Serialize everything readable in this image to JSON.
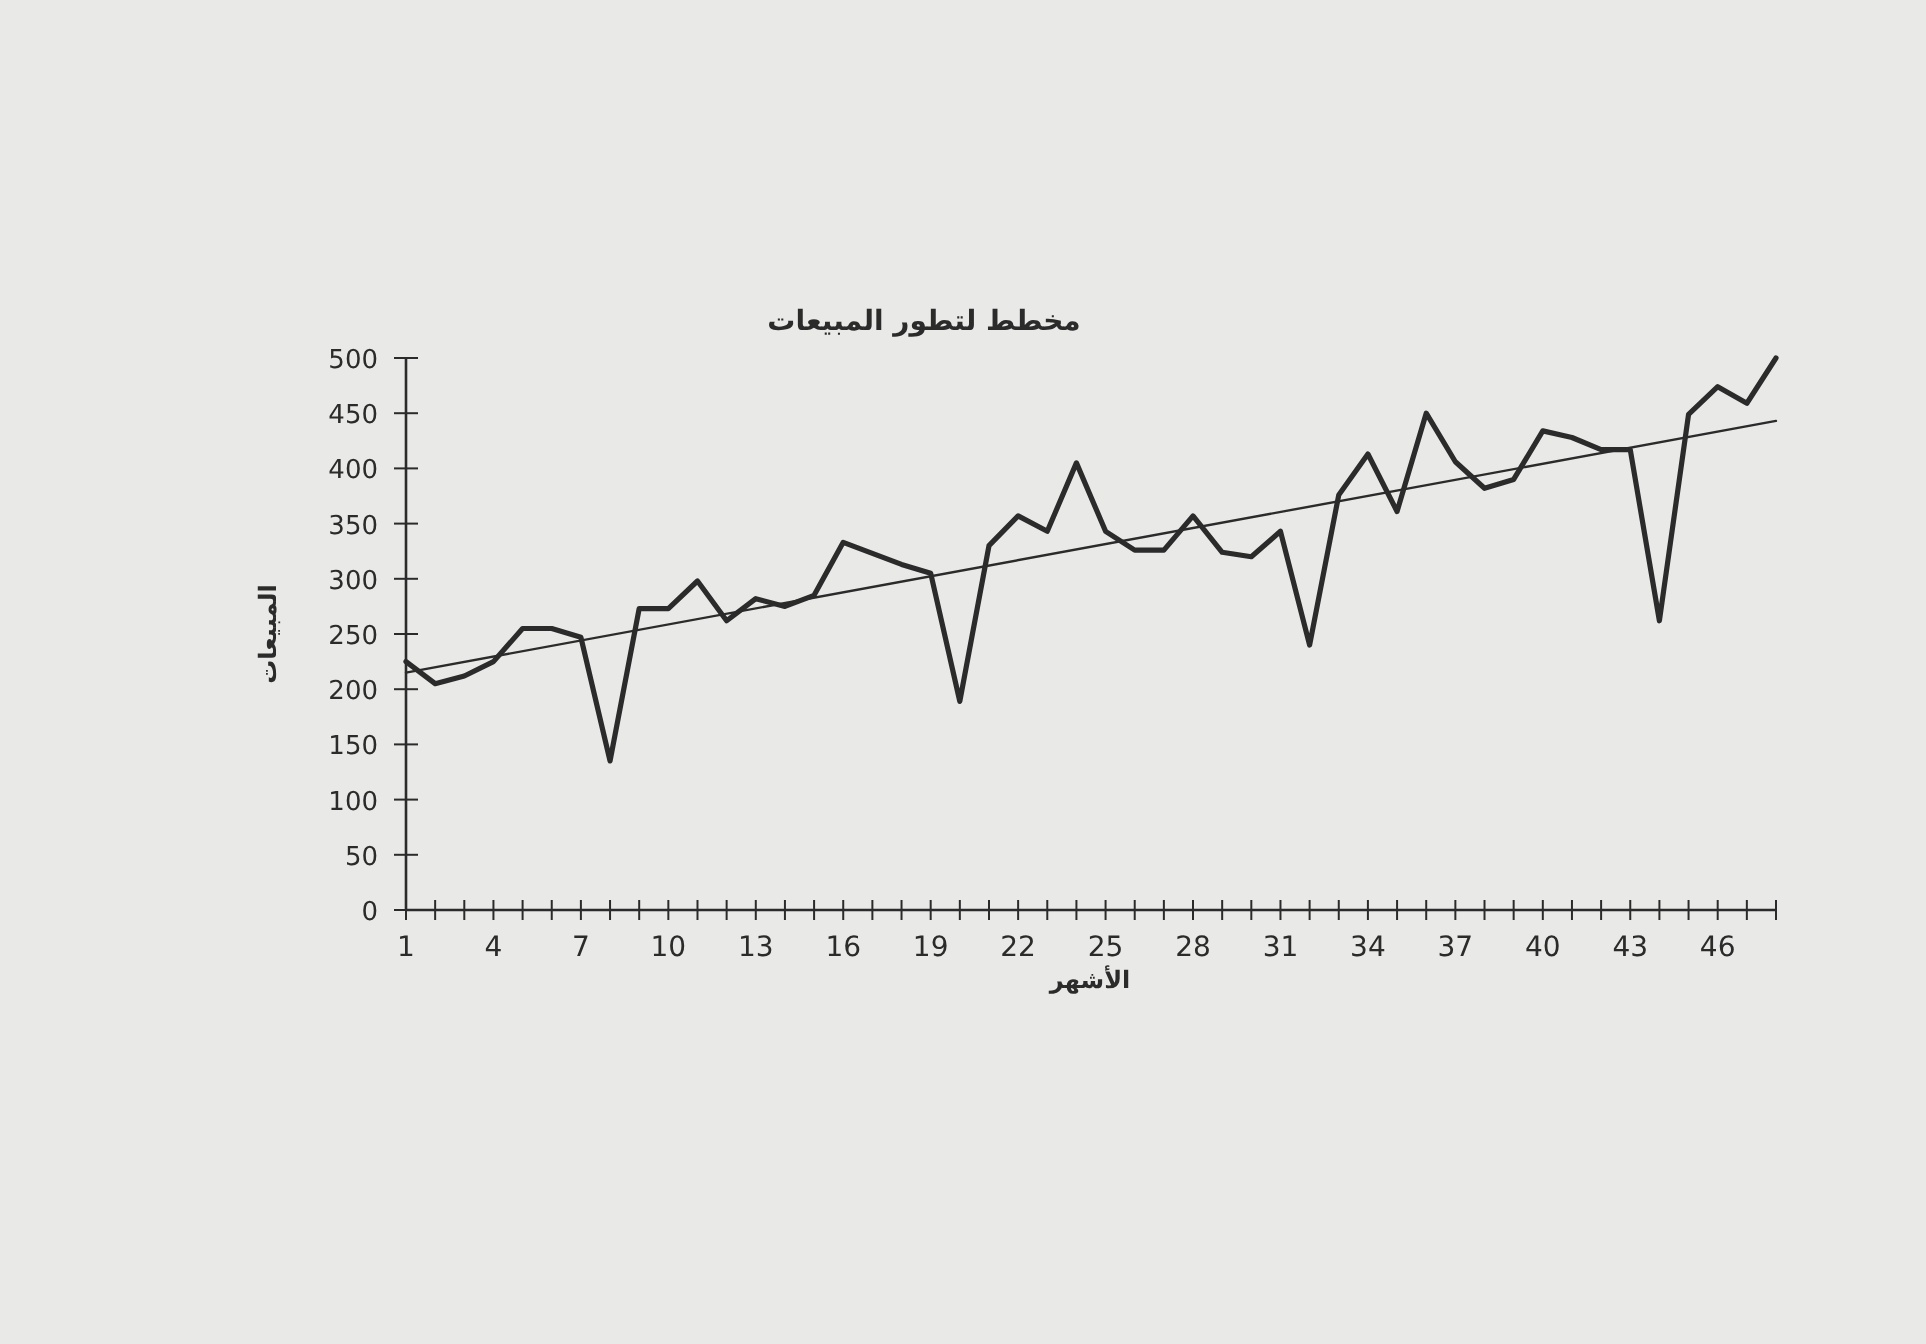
{
  "chart_data": {
    "type": "line",
    "title": "مخطط لتطور المبيعات",
    "xlabel": "الأشهر",
    "ylabel": "المبيعات",
    "x": [
      1,
      2,
      3,
      4,
      5,
      6,
      7,
      8,
      9,
      10,
      11,
      12,
      13,
      14,
      15,
      16,
      17,
      18,
      19,
      20,
      21,
      22,
      23,
      24,
      25,
      26,
      27,
      28,
      29,
      30,
      31,
      32,
      33,
      34,
      35,
      36,
      37,
      38,
      39,
      40,
      41,
      42,
      43,
      44,
      45,
      46,
      47,
      48
    ],
    "series": [
      {
        "color": "#2b2b2b",
        "values": [
          225,
          205,
          212,
          225,
          255,
          255,
          247,
          135,
          273,
          273,
          298,
          262,
          282,
          275,
          285,
          333,
          323,
          313,
          305,
          189,
          330,
          357,
          343,
          405,
          343,
          326,
          326,
          357,
          324,
          320,
          343,
          240,
          376,
          413,
          361,
          450,
          406,
          382,
          390,
          434,
          428,
          417,
          417,
          262,
          449,
          474,
          459,
          500
        ]
      },
      {
        "type": "line",
        "color": "#2b2b2b",
        "x": [
          1,
          48
        ],
        "values": [
          215,
          443
        ]
      }
    ],
    "xlim": [
      1,
      48
    ],
    "ylim": [
      0,
      500
    ],
    "yticks": [
      0,
      50,
      100,
      150,
      200,
      250,
      300,
      350,
      400,
      450,
      500
    ],
    "xticks": [
      1,
      {
        "value": 2,
        "label": null
      },
      {
        "value": 3,
        "label": null
      },
      4,
      {
        "value": 5,
        "label": null
      },
      {
        "value": 6,
        "label": null
      },
      7,
      {
        "value": 8,
        "label": null
      },
      {
        "value": 9,
        "label": null
      },
      10,
      {
        "value": 11,
        "label": null
      },
      {
        "value": 12,
        "label": null
      },
      13,
      {
        "value": 14,
        "label": null
      },
      {
        "value": 15,
        "label": null
      },
      16,
      {
        "value": 17,
        "label": null
      },
      {
        "value": 18,
        "label": null
      },
      19,
      {
        "value": 20,
        "label": null
      },
      {
        "value": 21,
        "label": null
      },
      22,
      {
        "value": 23,
        "label": null
      },
      {
        "value": 24,
        "label": null
      },
      25,
      {
        "value": 26,
        "label": null
      },
      {
        "value": 27,
        "label": null
      },
      28,
      {
        "value": 29,
        "label": null
      },
      {
        "value": 30,
        "label": null
      },
      31,
      {
        "value": 32,
        "label": null
      },
      {
        "value": 33,
        "label": null
      },
      34,
      {
        "value": 35,
        "label": null
      },
      {
        "value": 36,
        "label": null
      },
      37,
      {
        "value": 38,
        "label": null
      },
      {
        "value": 39,
        "label": null
      },
      40,
      {
        "value": 41,
        "label": null
      },
      {
        "value": 42,
        "label": null
      },
      43,
      {
        "value": 44,
        "label": null
      },
      {
        "value": 45,
        "label": null
      },
      46,
      {
        "value": 47,
        "label": null
      },
      {
        "value": 48,
        "label": null
      }
    ]
  }
}
